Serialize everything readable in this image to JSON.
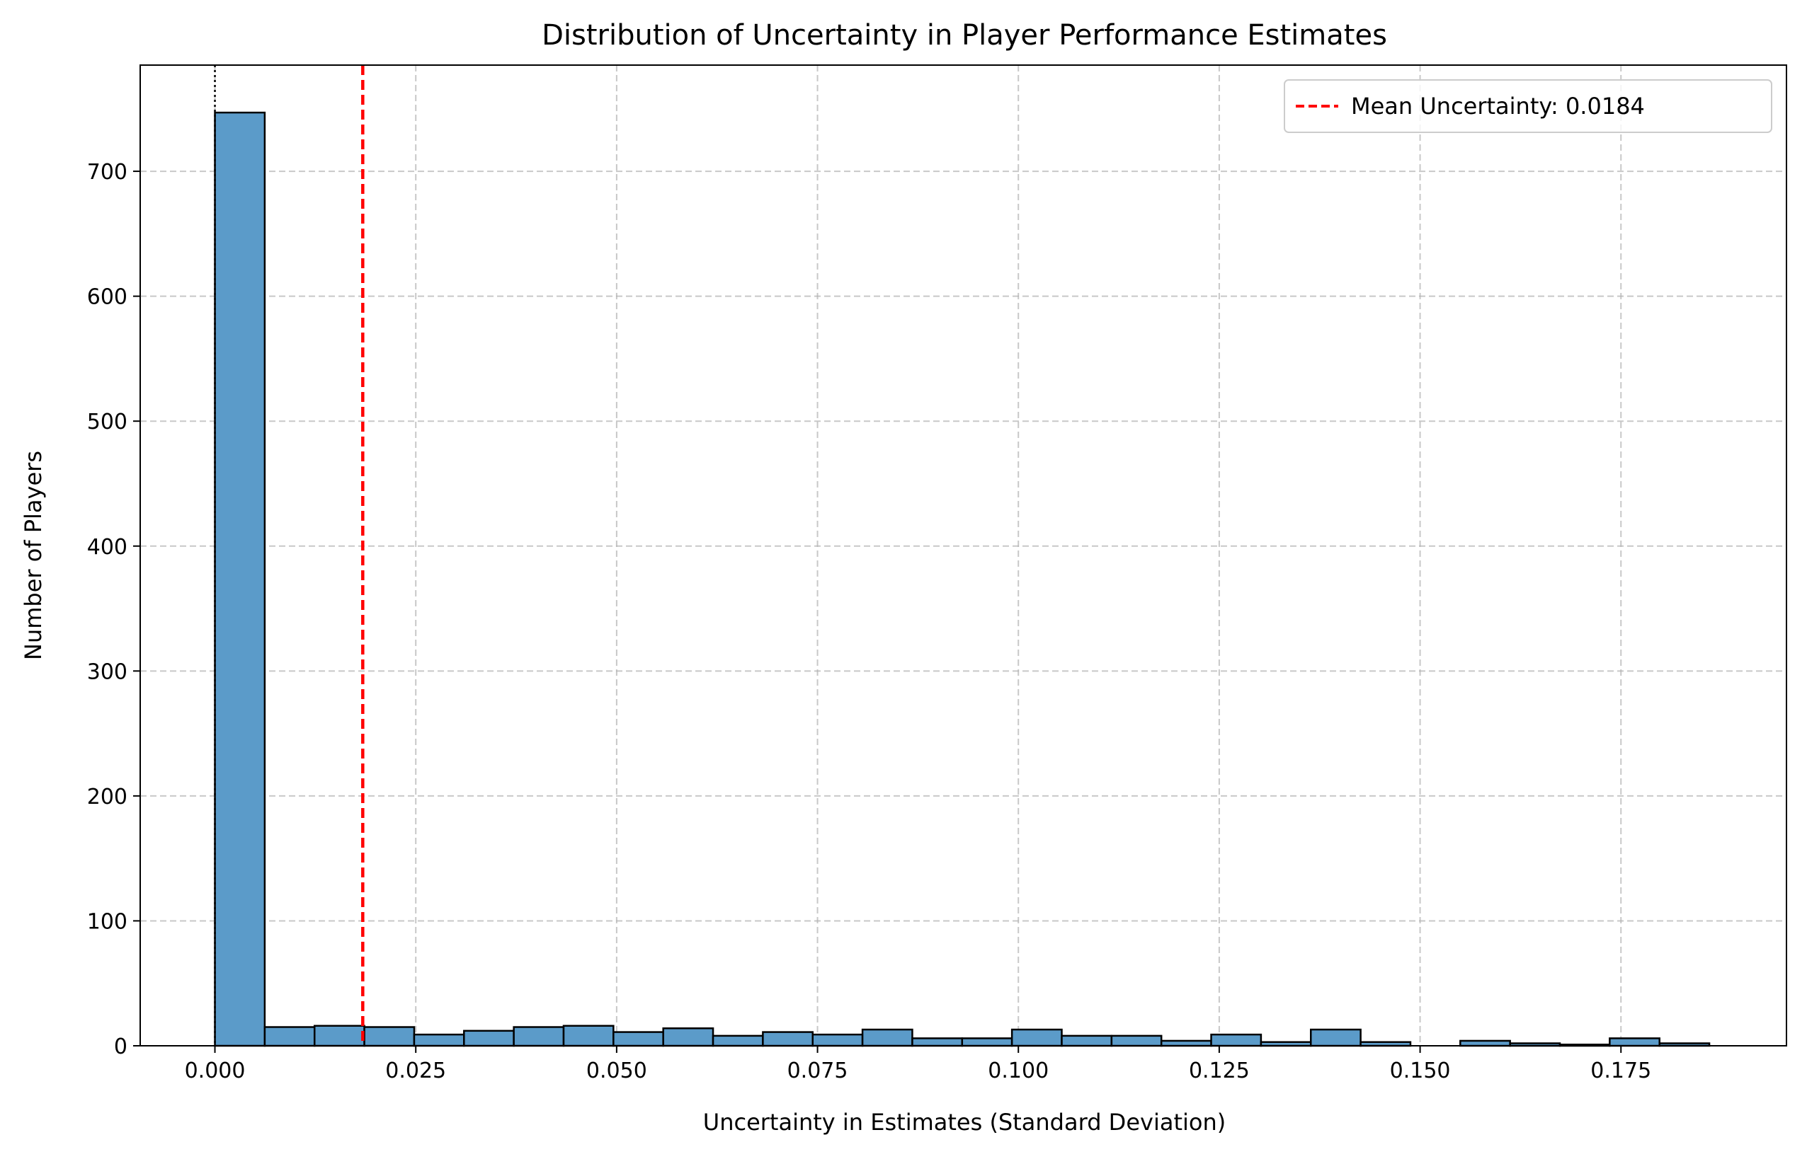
{
  "chart_data": {
    "type": "bar",
    "title": "Distribution of Uncertainty in Player Performance Estimates",
    "xlabel": "Uncertainty in Estimates (Standard Deviation)",
    "ylabel": "Number of Players",
    "xlim": [
      -0.0093,
      0.1956
    ],
    "ylim": [
      0,
      785
    ],
    "xticks": [
      0.0,
      0.025,
      0.05,
      0.075,
      0.1,
      0.125,
      0.15,
      0.175
    ],
    "xtick_labels": [
      "0.000",
      "0.025",
      "0.050",
      "0.075",
      "0.100",
      "0.125",
      "0.150",
      "0.175"
    ],
    "yticks": [
      0,
      100,
      200,
      300,
      400,
      500,
      600,
      700
    ],
    "ytick_labels": [
      "0",
      "100",
      "200",
      "300",
      "400",
      "500",
      "600",
      "700"
    ],
    "grid": true,
    "legend_position": "top-right",
    "bin_edges": [
      0.0,
      0.0062,
      0.0124,
      0.0186,
      0.0248,
      0.031,
      0.0372,
      0.0434,
      0.0496,
      0.0558,
      0.062,
      0.0682,
      0.0744,
      0.0806,
      0.0868,
      0.093,
      0.0992,
      0.1054,
      0.1116,
      0.1178,
      0.124,
      0.1302,
      0.1364,
      0.1426,
      0.1488,
      0.155,
      0.1612,
      0.1674,
      0.1736,
      0.1798,
      0.186
    ],
    "counts": [
      747,
      15,
      16,
      15,
      9,
      12,
      15,
      16,
      11,
      14,
      8,
      11,
      9,
      13,
      6,
      6,
      13,
      8,
      8,
      4,
      9,
      3,
      13,
      3,
      0,
      4,
      2,
      1,
      6,
      2
    ],
    "mean_line": {
      "x": 0.0184,
      "label": "Mean Uncertainty: 0.0184",
      "color": "#ff0000"
    },
    "zero_line": {
      "x": 0.0
    },
    "colors": {
      "bar_fill": "#5b9bc9",
      "bar_edge": "#000000",
      "grid": "#b0b0b0"
    }
  }
}
